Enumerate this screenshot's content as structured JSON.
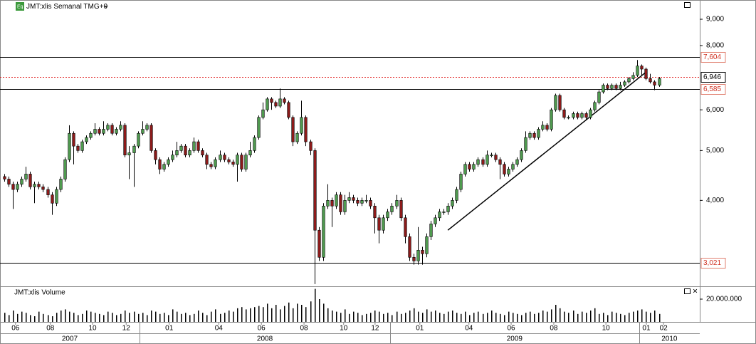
{
  "chart_data": {
    "type": "candlestick",
    "title": "JMT:xlis Semanal TMG+0",
    "volume_title": "JMT:xlis Volume",
    "log_scale": true,
    "up_color": "#4f9a4f",
    "down_color": "#8b1a1a",
    "volume_color": "#000000",
    "ylim": [
      2740,
      9810
    ],
    "yticks": [
      {
        "value": 9000,
        "label": "9,000"
      },
      {
        "value": 8000,
        "label": "8,000"
      },
      {
        "value": 6000,
        "label": "6,000"
      },
      {
        "value": 5000,
        "label": "5,000"
      },
      {
        "value": 4000,
        "label": "4,000"
      }
    ],
    "levels": [
      {
        "value": 7604,
        "label": "7,604"
      },
      {
        "value": 6585,
        "label": "6,585"
      },
      {
        "value": 3021,
        "label": "3,021"
      }
    ],
    "last_price": {
      "value": 6946,
      "label": "6,946"
    },
    "trendline": {
      "x": [
        103,
        149
      ],
      "y": [
        3500,
        7100
      ]
    },
    "xlim": [
      -1,
      161.5
    ],
    "xticks": [
      {
        "value": 2.6,
        "label": "06"
      },
      {
        "value": 10.7,
        "label": "08"
      },
      {
        "value": 20.5,
        "label": "10"
      },
      {
        "value": 28.3,
        "label": "12"
      },
      {
        "value": 38.3,
        "label": "01"
      },
      {
        "value": 49.8,
        "label": "04"
      },
      {
        "value": 59.7,
        "label": "06"
      },
      {
        "value": 69.6,
        "label": "08"
      },
      {
        "value": 78.8,
        "label": "10"
      },
      {
        "value": 86.1,
        "label": "12"
      },
      {
        "value": 96.5,
        "label": "01"
      },
      {
        "value": 107.9,
        "label": "04"
      },
      {
        "value": 117.7,
        "label": "06"
      },
      {
        "value": 127.6,
        "label": "08"
      },
      {
        "value": 139.7,
        "label": "10"
      },
      {
        "value": 149.1,
        "label": "01"
      },
      {
        "value": 153.1,
        "label": "02"
      }
    ],
    "years": [
      {
        "value": -1,
        "label": "2007"
      },
      {
        "value": 31.4,
        "label": "2008"
      },
      {
        "value": 89.6,
        "label": "2009"
      },
      {
        "value": 147.4,
        "label": "2010"
      }
    ],
    "volume_ylim": [
      0,
      30000000
    ],
    "volume_ticks": [
      {
        "value": 20000000,
        "label": "20.000.000"
      }
    ],
    "open": [
      4450,
      4400,
      4300,
      4200,
      4300,
      4400,
      4500,
      4250,
      4300,
      4250,
      4200,
      4100,
      3950,
      4200,
      4400,
      4800,
      5400,
      5100,
      5000,
      5200,
      5300,
      5400,
      5500,
      5400,
      5500,
      5600,
      5400,
      5500,
      5600,
      4900,
      4950,
      5100,
      5400,
      5500,
      5600,
      5000,
      4800,
      4600,
      4700,
      4800,
      4900,
      5000,
      5100,
      4900,
      5000,
      5200,
      5000,
      4900,
      4700,
      4650,
      4800,
      4900,
      4800,
      4750,
      4700,
      4900,
      4600,
      4900,
      5000,
      5300,
      5800,
      6000,
      6300,
      6200,
      6100,
      6300,
      6200,
      5800,
      5200,
      5400,
      5800,
      5200,
      5000,
      3500,
      3100,
      3900,
      4000,
      3900,
      4100,
      3800,
      4000,
      4050,
      4000,
      3950,
      4000,
      4000,
      3900,
      3700,
      3500,
      3700,
      3800,
      3900,
      4000,
      3700,
      3400,
      3100,
      3050,
      3200,
      3150,
      3400,
      3600,
      3700,
      3800,
      3800,
      3900,
      4000,
      4200,
      4500,
      4700,
      4600,
      4700,
      4800,
      4700,
      4900,
      4900,
      4800,
      4700,
      4500,
      4600,
      4700,
      4800,
      5000,
      5300,
      5400,
      5300,
      5500,
      5600,
      5500,
      6000,
      6400,
      6000,
      5800,
      5800,
      5900,
      5800,
      5900,
      5800,
      6000,
      6200,
      6500,
      6700,
      6600,
      6700,
      6600,
      6700,
      6800,
      6900,
      7000,
      7300,
      7200,
      6900,
      6800,
      6700
    ],
    "high": [
      4500,
      4450,
      4350,
      4350,
      4450,
      4650,
      4550,
      4350,
      4350,
      4300,
      4250,
      4150,
      4250,
      4450,
      4850,
      5600,
      5450,
      5150,
      5250,
      5350,
      5450,
      5650,
      5550,
      5700,
      5650,
      5650,
      5550,
      5700,
      5650,
      5100,
      5150,
      5450,
      5700,
      5650,
      5650,
      5050,
      4850,
      4750,
      4850,
      5000,
      5200,
      5150,
      5150,
      5050,
      5300,
      5250,
      5050,
      4950,
      4750,
      4850,
      5000,
      4950,
      4850,
      4800,
      4950,
      4950,
      4950,
      5200,
      5350,
      5850,
      6200,
      6350,
      6350,
      6250,
      6600,
      6350,
      6250,
      5850,
      5450,
      6250,
      5850,
      5250,
      5050,
      3550,
      3950,
      4300,
      4050,
      4150,
      4150,
      4100,
      4150,
      4100,
      4050,
      4050,
      4100,
      4050,
      3950,
      3750,
      3750,
      3850,
      3950,
      4100,
      4050,
      3750,
      3450,
      3150,
      3550,
      3250,
      3450,
      3650,
      3750,
      3850,
      3850,
      3950,
      4050,
      4250,
      4550,
      4750,
      4750,
      4750,
      4850,
      4850,
      5000,
      4950,
      4950,
      4850,
      4750,
      4650,
      4750,
      4850,
      5050,
      5450,
      5450,
      5450,
      5550,
      5700,
      5650,
      6050,
      6450,
      6450,
      6050,
      5850,
      5950,
      5950,
      5950,
      5950,
      6050,
      6250,
      6550,
      6750,
      6750,
      6750,
      6750,
      6800,
      6850,
      6950,
      7100,
      7500,
      7350,
      7250,
      7050,
      6850,
      6950
    ],
    "low": [
      4350,
      4250,
      3850,
      4150,
      4250,
      4350,
      4200,
      3950,
      4200,
      4150,
      4050,
      3750,
      3900,
      4150,
      4350,
      4750,
      4700,
      4950,
      4950,
      5150,
      5250,
      5350,
      5350,
      5350,
      5450,
      5350,
      5350,
      5450,
      4850,
      4400,
      4250,
      5050,
      5350,
      5450,
      4950,
      4700,
      4500,
      4550,
      4650,
      4750,
      4850,
      4950,
      4850,
      4850,
      4950,
      4950,
      4850,
      4600,
      4600,
      4600,
      4750,
      4750,
      4700,
      4650,
      4350,
      4550,
      4550,
      4850,
      4950,
      5250,
      5750,
      5950,
      6000,
      6050,
      6050,
      6150,
      5750,
      5100,
      5150,
      5350,
      5100,
      4900,
      2750,
      3050,
      3050,
      3850,
      3550,
      3850,
      3750,
      3750,
      3950,
      3950,
      3900,
      3900,
      3950,
      3850,
      3450,
      3300,
      3450,
      3650,
      3750,
      3850,
      3650,
      3300,
      3050,
      3000,
      3000,
      3000,
      3100,
      3350,
      3550,
      3650,
      3750,
      3750,
      3850,
      3950,
      4150,
      4450,
      4550,
      4550,
      4650,
      4650,
      4650,
      4850,
      4750,
      4400,
      4450,
      4450,
      4550,
      4650,
      4750,
      4950,
      5250,
      5250,
      5250,
      5450,
      5450,
      5450,
      5950,
      5950,
      5750,
      5750,
      5750,
      5750,
      5750,
      5750,
      5750,
      5950,
      6150,
      6450,
      6550,
      6550,
      6550,
      6550,
      6650,
      6750,
      6850,
      6950,
      7000,
      6850,
      6750,
      6550,
      6650
    ],
    "close": [
      4400,
      4300,
      4200,
      4300,
      4400,
      4500,
      4250,
      4300,
      4250,
      4200,
      4100,
      3950,
      4200,
      4400,
      4800,
      5400,
      5100,
      5000,
      5200,
      5300,
      5400,
      5500,
      5400,
      5500,
      5600,
      5400,
      5500,
      5600,
      4900,
      4950,
      5100,
      5400,
      5500,
      5600,
      5000,
      4800,
      4600,
      4700,
      4800,
      4900,
      5000,
      5100,
      4900,
      5000,
      5200,
      5000,
      4900,
      4700,
      4650,
      4800,
      4900,
      4800,
      4750,
      4700,
      4900,
      4600,
      4900,
      5000,
      5300,
      5800,
      6000,
      6300,
      6200,
      6100,
      6300,
      6200,
      5800,
      5200,
      5400,
      5800,
      5200,
      5000,
      3500,
      3100,
      3900,
      4000,
      3900,
      4100,
      3800,
      4000,
      4050,
      4000,
      3950,
      4000,
      4000,
      3900,
      3700,
      3500,
      3700,
      3800,
      3900,
      4000,
      3700,
      3400,
      3100,
      3050,
      3200,
      3150,
      3400,
      3600,
      3700,
      3800,
      3800,
      3900,
      4000,
      4200,
      4500,
      4700,
      4600,
      4700,
      4800,
      4700,
      4900,
      4900,
      4800,
      4700,
      4500,
      4600,
      4700,
      4800,
      5000,
      5300,
      5400,
      5300,
      5500,
      5600,
      5500,
      6000,
      6400,
      6000,
      5800,
      5800,
      5900,
      5800,
      5900,
      5800,
      6000,
      6200,
      6500,
      6700,
      6600,
      6700,
      6600,
      6700,
      6800,
      6900,
      7000,
      7300,
      7200,
      6900,
      6800,
      6700,
      6900
    ],
    "volume": [
      8000000,
      6000000,
      10000000,
      7000000,
      9000000,
      8000000,
      6000000,
      5000000,
      9000000,
      7000000,
      6000000,
      5000000,
      8000000,
      10000000,
      11000000,
      9000000,
      8000000,
      6000000,
      7000000,
      10000000,
      9000000,
      8000000,
      7000000,
      6000000,
      9000000,
      8000000,
      6000000,
      7000000,
      10000000,
      8000000,
      9000000,
      7000000,
      8000000,
      6000000,
      10000000,
      9000000,
      7000000,
      8000000,
      6000000,
      11000000,
      9000000,
      7000000,
      8000000,
      6000000,
      7000000,
      10000000,
      8000000,
      6000000,
      9000000,
      11000000,
      7000000,
      8000000,
      10000000,
      9000000,
      12000000,
      13000000,
      11000000,
      12000000,
      13000000,
      14000000,
      13000000,
      16000000,
      12000000,
      15000000,
      11000000,
      14000000,
      17000000,
      12000000,
      16000000,
      15000000,
      13000000,
      18000000,
      29000000,
      20000000,
      16000000,
      12000000,
      10000000,
      9000000,
      8000000,
      11000000,
      7000000,
      9000000,
      8000000,
      6000000,
      7000000,
      8000000,
      10000000,
      9000000,
      7000000,
      8000000,
      6000000,
      9000000,
      7000000,
      8000000,
      10000000,
      12000000,
      9000000,
      8000000,
      11000000,
      9000000,
      10000000,
      8000000,
      7000000,
      9000000,
      10000000,
      8000000,
      7000000,
      9000000,
      6000000,
      8000000,
      9000000,
      7000000,
      8000000,
      10000000,
      8000000,
      7000000,
      6000000,
      9000000,
      8000000,
      7000000,
      6000000,
      8000000,
      9000000,
      7000000,
      8000000,
      10000000,
      9000000,
      11000000,
      15000000,
      12000000,
      9000000,
      8000000,
      10000000,
      7000000,
      9000000,
      8000000,
      10000000,
      12000000,
      7000000,
      8000000,
      6000000,
      9000000,
      8000000,
      7000000,
      6000000,
      8000000,
      9000000,
      10000000,
      11000000,
      9000000,
      8000000,
      10000000,
      7000000
    ]
  }
}
